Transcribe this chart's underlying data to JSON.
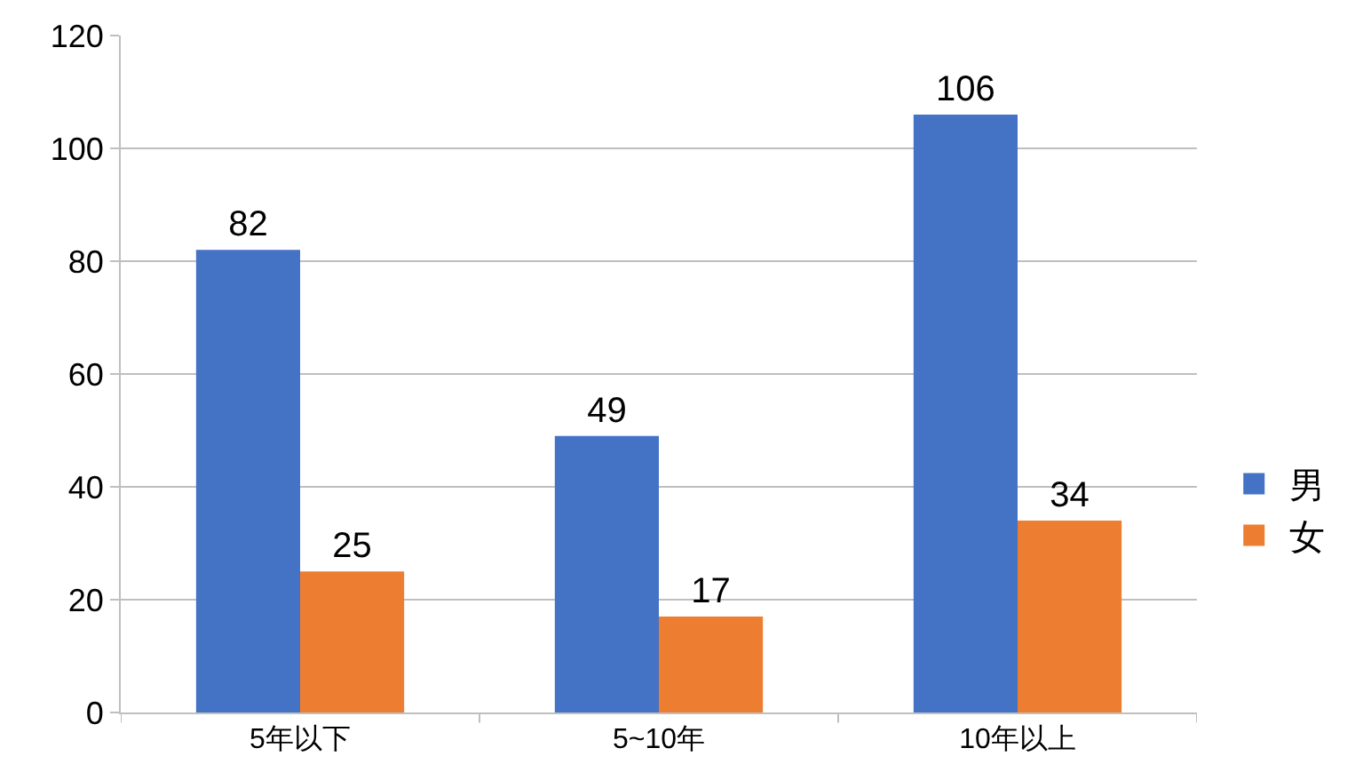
{
  "chart_data": {
    "type": "bar",
    "categories": [
      "5年以下",
      "5~10年",
      "10年以上"
    ],
    "series": [
      {
        "name": "男",
        "color": "#4472c4",
        "values": [
          82,
          49,
          106
        ]
      },
      {
        "name": "女",
        "color": "#ed7d31",
        "values": [
          25,
          17,
          34
        ]
      }
    ],
    "ylim": [
      0,
      120
    ],
    "yticks": [
      0,
      20,
      40,
      60,
      80,
      100,
      120
    ],
    "grid": "y",
    "legend": "right",
    "data_labels": true
  }
}
